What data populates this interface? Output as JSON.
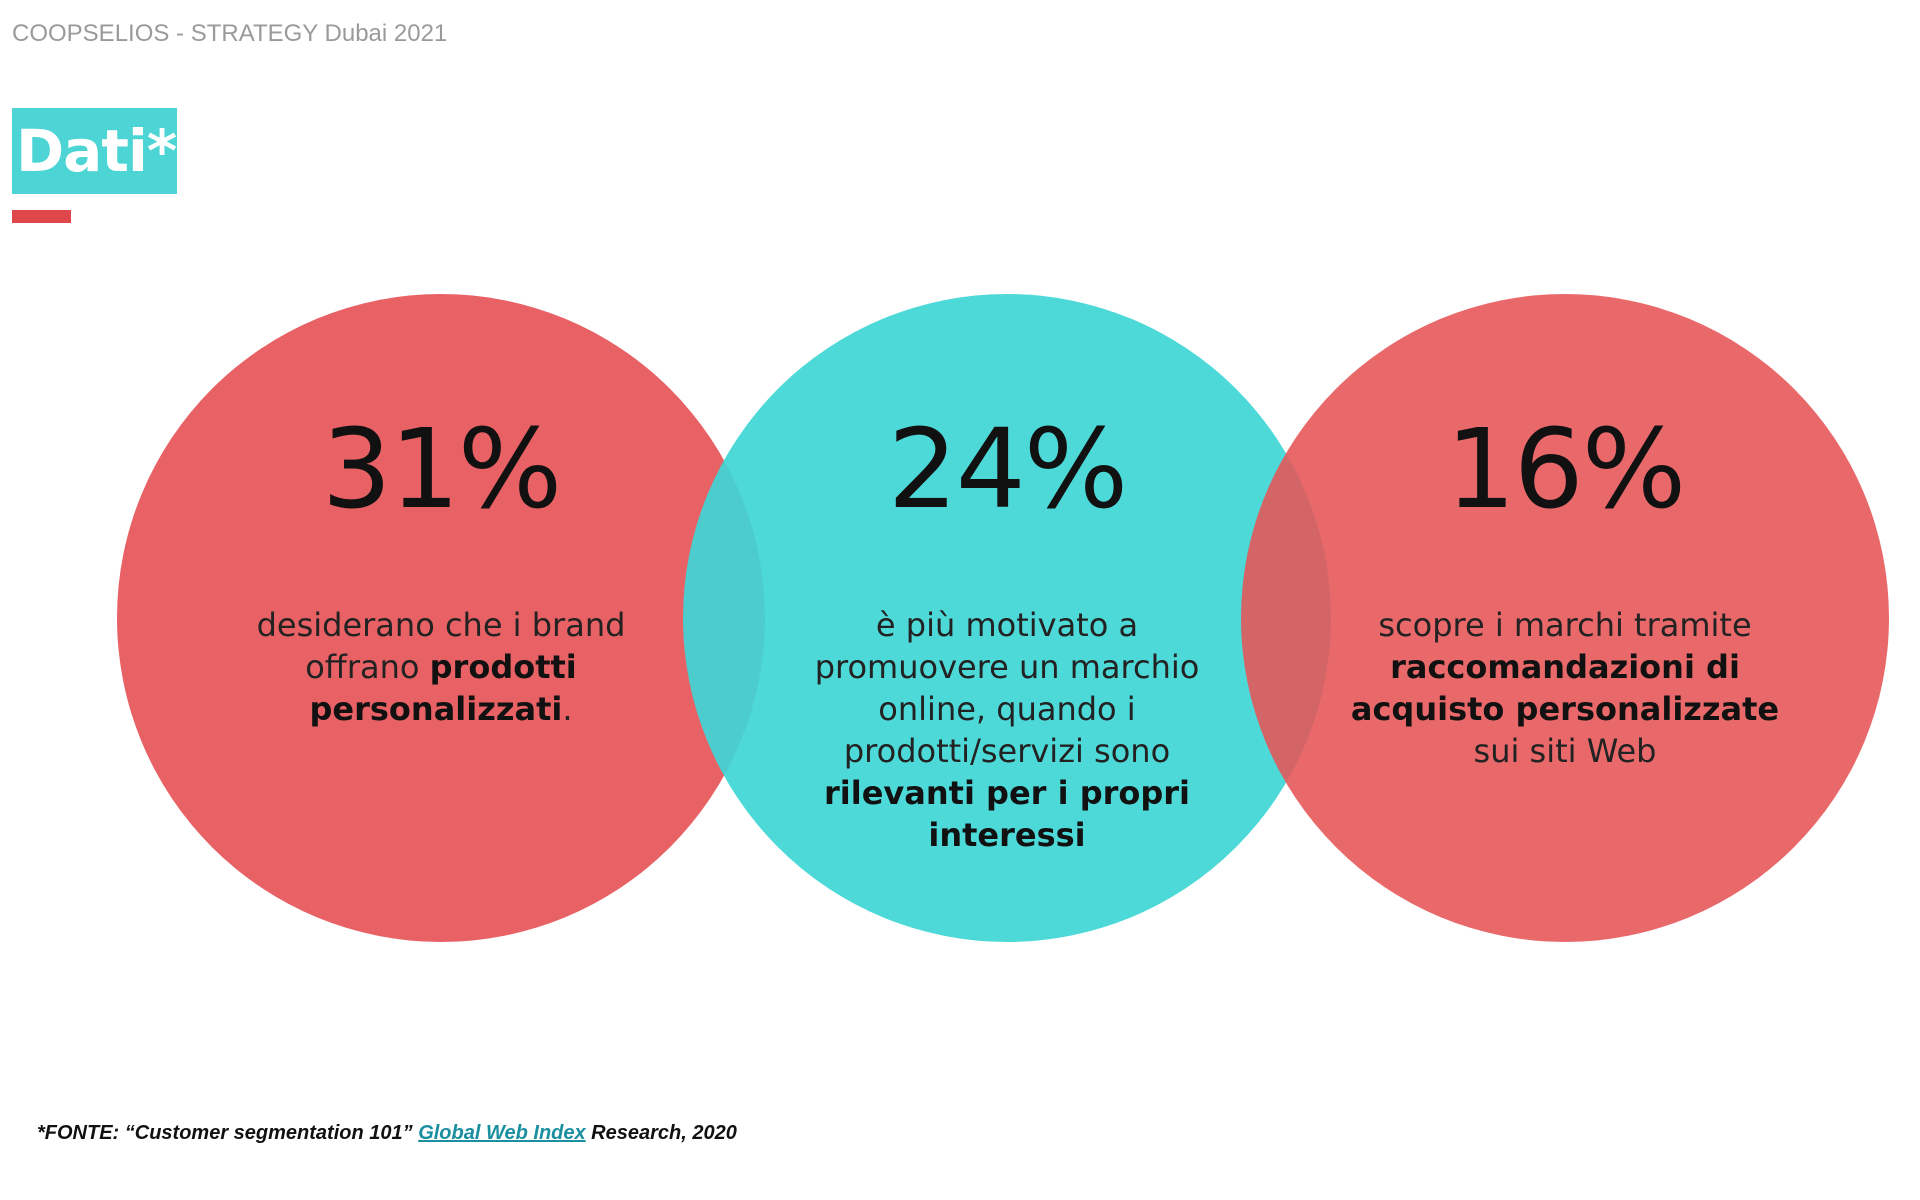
{
  "header": {
    "text": "COOPSELIOS - STRATEGY Dubai 2021"
  },
  "title": {
    "text": "Dati*"
  },
  "circles": [
    {
      "stat": "31%",
      "description": [
        {
          "text": "desiderano che i brand offrano ",
          "bold": false
        },
        {
          "text": "prodotti personalizzati",
          "bold": true
        },
        {
          "text": ".",
          "bold": false
        }
      ]
    },
    {
      "stat": "24%",
      "description": [
        {
          "text": "è più motivato a promuovere un marchio online, quando i prodotti/servizi sono ",
          "bold": false
        },
        {
          "text": "rilevanti per i propri interessi",
          "bold": true
        }
      ]
    },
    {
      "stat": "16%",
      "description": [
        {
          "text": "scopre i marchi tramite ",
          "bold": false
        },
        {
          "text": "raccomandazioni di acquisto personalizzate",
          "bold": true
        },
        {
          "text": " sui siti Web",
          "bold": false
        }
      ]
    }
  ],
  "footnote": {
    "before": "*FONTE: “Customer segmentation 101” ",
    "link": "Global Web Index",
    "after": " Research, 2020"
  }
}
